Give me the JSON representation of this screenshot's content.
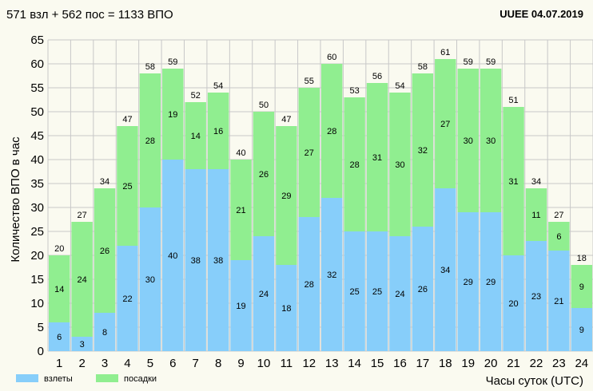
{
  "header": {
    "summary": "571 взл + 562 пос = 1133 ВПО",
    "station_date": "UUEE  04.07.2019"
  },
  "colors": {
    "departures": "#87cefa",
    "arrivals": "#90ee90",
    "grid": "#c8c8c8",
    "background": "#fafaf0"
  },
  "chart_data": {
    "type": "bar",
    "stacked": true,
    "title": "571 взл + 562 пос = 1133 ВПО",
    "xlabel": "Часы суток (UTC)",
    "ylabel": "Количество ВПО в час",
    "ylim": [
      0,
      65
    ],
    "yticks": [
      0,
      5,
      10,
      15,
      20,
      25,
      30,
      35,
      40,
      45,
      50,
      55,
      60,
      65
    ],
    "grid": true,
    "legend_position": "bottom-left",
    "categories": [
      "1",
      "2",
      "3",
      "4",
      "5",
      "6",
      "7",
      "8",
      "9",
      "10",
      "11",
      "12",
      "13",
      "14",
      "15",
      "16",
      "17",
      "18",
      "19",
      "20",
      "21",
      "22",
      "23",
      "24"
    ],
    "series": [
      {
        "name": "взлеты",
        "values": [
          6,
          3,
          8,
          22,
          30,
          40,
          38,
          38,
          19,
          24,
          18,
          28,
          32,
          25,
          25,
          24,
          26,
          34,
          29,
          29,
          20,
          23,
          21,
          9
        ]
      },
      {
        "name": "посадки",
        "values": [
          14,
          24,
          26,
          25,
          28,
          19,
          14,
          16,
          21,
          26,
          29,
          27,
          28,
          28,
          31,
          30,
          32,
          27,
          30,
          30,
          31,
          11,
          6,
          9
        ]
      }
    ],
    "totals": [
      20,
      27,
      34,
      47,
      58,
      59,
      52,
      54,
      40,
      50,
      47,
      55,
      60,
      53,
      56,
      54,
      58,
      61,
      59,
      59,
      51,
      34,
      27,
      18
    ]
  }
}
